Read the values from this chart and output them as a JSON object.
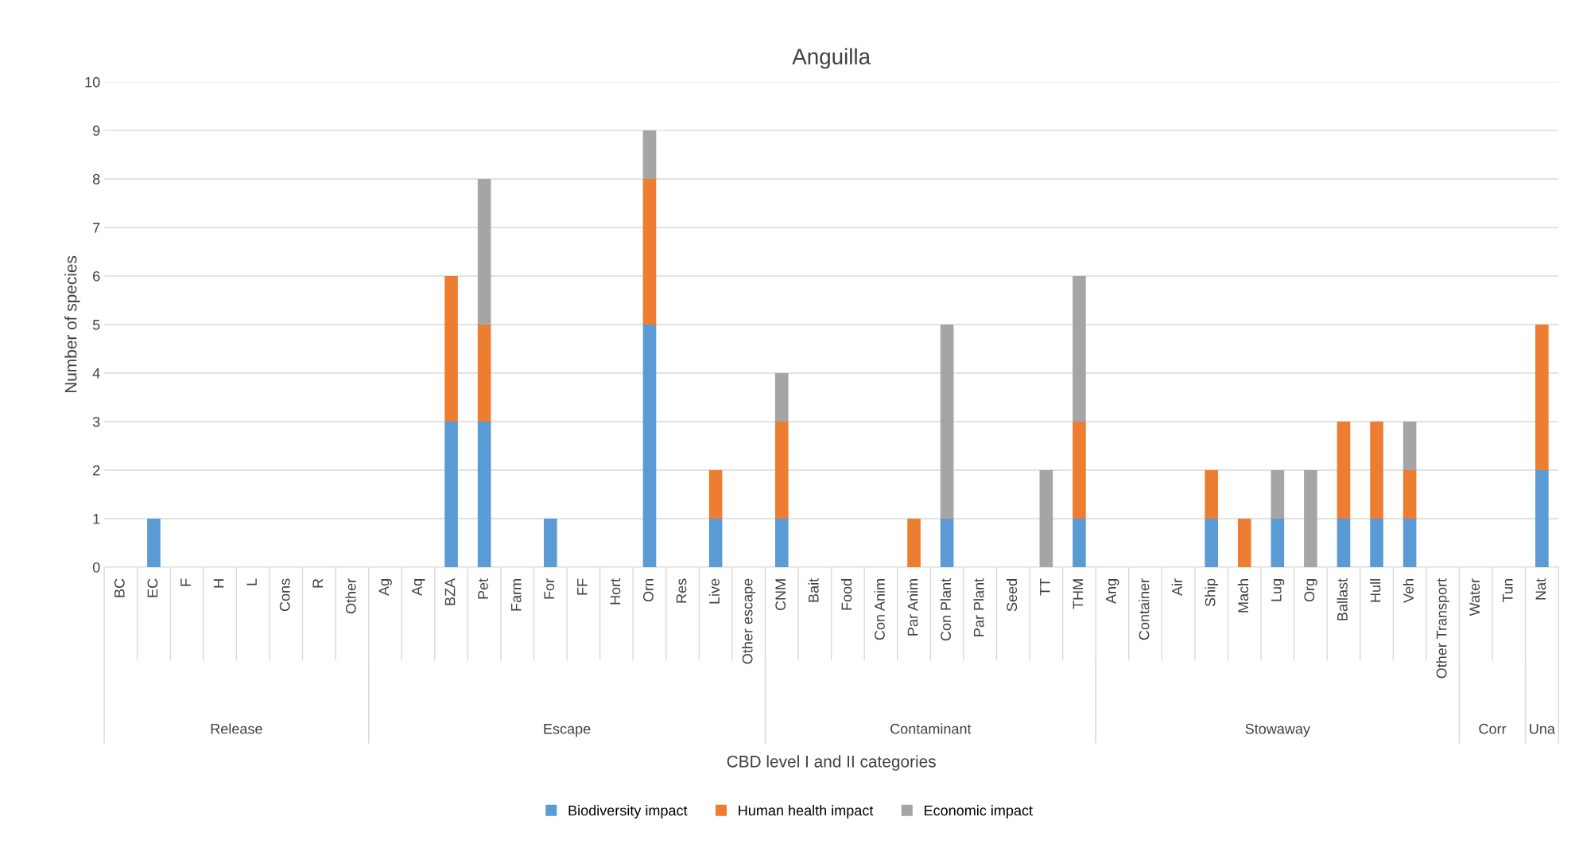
{
  "chart_data": {
    "type": "bar",
    "title": "Anguilla",
    "xlabel": "CBD level I and II categories",
    "ylabel": "Number of species",
    "categories": [
      "BC",
      "EC",
      "F",
      "H",
      "L",
      "Cons",
      "R",
      "Other",
      "Ag",
      "Aq",
      "BZA",
      "Pet",
      "Farm",
      "For",
      "FF",
      "Hort",
      "Orn",
      "Res",
      "Live",
      "Other escape",
      "CNM",
      "Bait",
      "Food",
      "Con Anim",
      "Par Anim",
      "Con Plant",
      "Par Plant",
      "Seed",
      "TT",
      "THM",
      "Ang",
      "Container",
      "Air",
      "Ship",
      "Mach",
      "Lug",
      "Org",
      "Ballast",
      "Hull",
      "Veh",
      "Other Transport",
      "Water",
      "Tun",
      "Nat"
    ],
    "series": [
      {
        "name": "Biodiversity impact",
        "color": "#5b9bd5",
        "values": [
          0,
          1,
          0,
          0,
          0,
          0,
          0,
          0,
          0,
          0,
          3,
          3,
          0,
          1,
          0,
          0,
          5,
          0,
          1,
          0,
          1,
          0,
          0,
          0,
          0,
          1,
          0,
          0,
          0,
          1,
          0,
          0,
          0,
          1,
          0,
          1,
          0,
          1,
          1,
          1,
          0,
          0,
          0,
          2
        ]
      },
      {
        "name": "Human health impact",
        "color": "#ed7d31",
        "values": [
          0,
          0,
          0,
          0,
          0,
          0,
          0,
          0,
          0,
          0,
          3,
          2,
          0,
          0,
          0,
          0,
          3,
          0,
          1,
          0,
          2,
          0,
          0,
          0,
          1,
          0,
          0,
          0,
          0,
          2,
          0,
          0,
          0,
          1,
          1,
          0,
          0,
          2,
          2,
          1,
          0,
          0,
          0,
          3
        ]
      },
      {
        "name": "Economic impact",
        "color": "#a5a5a5",
        "values": [
          0,
          0,
          0,
          0,
          0,
          0,
          0,
          0,
          0,
          0,
          0,
          3,
          0,
          0,
          0,
          0,
          1,
          0,
          0,
          0,
          1,
          0,
          0,
          0,
          0,
          4,
          0,
          0,
          2,
          3,
          0,
          0,
          0,
          0,
          0,
          1,
          2,
          0,
          0,
          1,
          0,
          0,
          0,
          0
        ]
      }
    ],
    "stacked": true,
    "ylim": [
      0,
      10
    ],
    "yticks": [
      0,
      1,
      2,
      3,
      4,
      5,
      6,
      7,
      8,
      9,
      10
    ],
    "grid": "y",
    "legend": "bottom",
    "annotations": [
      "Release",
      "Escape",
      "Contaminant",
      "Stowaway",
      "Corr",
      "Una"
    ]
  }
}
